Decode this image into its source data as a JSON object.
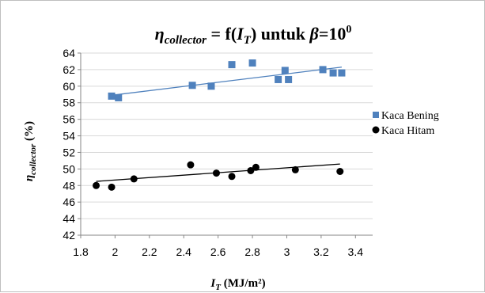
{
  "chart_data": {
    "type": "scatter",
    "title": {
      "eta": "η",
      "eta_sub": "collector",
      "eq": " = f(",
      "var": "I",
      "var_sub": "T",
      "rest": ") untuk ",
      "beta": "β",
      "beta_eq": "=10",
      "degree": "0"
    },
    "xlabel": {
      "var": "I",
      "var_sub": "T",
      "unit": " (MJ/m²)"
    },
    "ylabel": {
      "var": "η",
      "var_sub": "collector",
      "unit": " (%)"
    },
    "xlim": [
      1.8,
      3.5
    ],
    "ylim": [
      42,
      64
    ],
    "xticks": [
      "1.8",
      "2",
      "2.2",
      "2.4",
      "2.6",
      "2.8",
      "3",
      "3.2",
      "3.4"
    ],
    "yticks": [
      "42",
      "44",
      "46",
      "48",
      "50",
      "52",
      "54",
      "56",
      "58",
      "60",
      "62",
      "64"
    ],
    "grid": "horizontal",
    "legend_position": "right",
    "series": [
      {
        "name": "Kaca Bening",
        "marker": "square",
        "color": "#4f81bd",
        "points": [
          [
            1.98,
            58.8
          ],
          [
            2.02,
            58.6
          ],
          [
            2.45,
            60.1
          ],
          [
            2.56,
            60.0
          ],
          [
            2.68,
            62.6
          ],
          [
            2.8,
            62.8
          ],
          [
            2.95,
            60.8
          ],
          [
            2.99,
            61.9
          ],
          [
            3.01,
            60.8
          ],
          [
            3.21,
            62.0
          ],
          [
            3.27,
            61.6
          ],
          [
            3.32,
            61.6
          ]
        ],
        "trendline": {
          "x": [
            1.98,
            3.32
          ],
          "y": [
            58.9,
            62.3
          ]
        }
      },
      {
        "name": "Kaca Hitam",
        "marker": "circle",
        "color": "#000000",
        "points": [
          [
            1.89,
            48.0
          ],
          [
            1.98,
            47.8
          ],
          [
            2.11,
            48.8
          ],
          [
            2.44,
            50.5
          ],
          [
            2.59,
            49.5
          ],
          [
            2.68,
            49.1
          ],
          [
            2.79,
            49.8
          ],
          [
            2.82,
            50.2
          ],
          [
            3.05,
            49.9
          ],
          [
            3.31,
            49.7
          ]
        ],
        "trendline": {
          "x": [
            1.89,
            3.31
          ],
          "y": [
            48.5,
            50.6
          ]
        }
      }
    ]
  }
}
